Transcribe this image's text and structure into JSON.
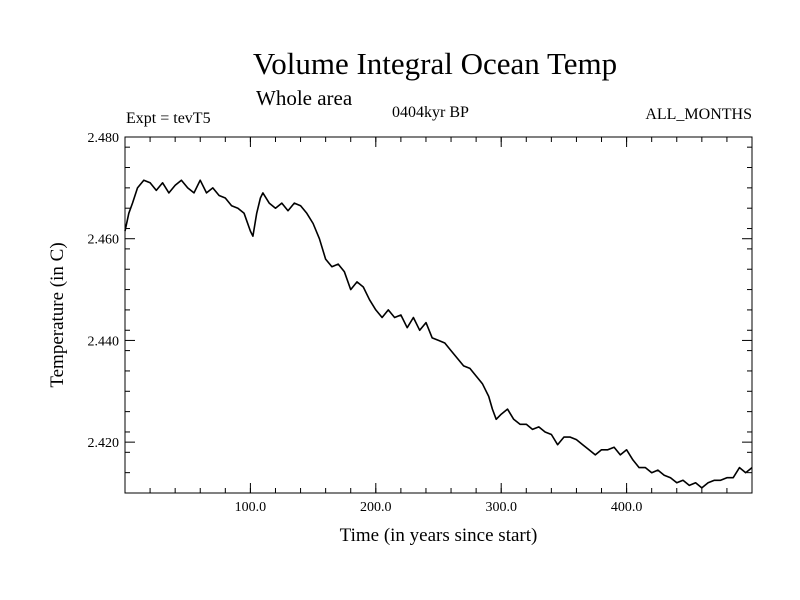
{
  "chart_data": {
    "type": "line",
    "title": "Volume Integral Ocean Temp",
    "subtitle": "Whole area",
    "left_annotation": "Expt = tevT5",
    "center_annotation": "0404kyr BP",
    "right_annotation": "ALL_MONTHS",
    "xlabel": "Time (in years since start)",
    "ylabel": "Temperature (in C)",
    "xlim": [
      0,
      500
    ],
    "ylim": [
      2.41,
      2.48
    ],
    "x_ticks": [
      100,
      200,
      300,
      400
    ],
    "x_tick_labels": [
      "100.0",
      "200.0",
      "300.0",
      "400.0"
    ],
    "y_ticks": [
      2.42,
      2.44,
      2.46,
      2.48
    ],
    "y_tick_labels": [
      "2.420",
      "2.440",
      "2.460",
      "2.480"
    ],
    "grid": false,
    "series": [
      {
        "color": "#000000",
        "x": [
          0,
          3,
          6,
          10,
          15,
          20,
          25,
          30,
          35,
          40,
          45,
          50,
          55,
          60,
          65,
          70,
          75,
          80,
          85,
          90,
          95,
          100,
          102,
          105,
          108,
          110,
          115,
          120,
          125,
          130,
          135,
          140,
          145,
          150,
          155,
          160,
          165,
          170,
          175,
          180,
          185,
          190,
          195,
          200,
          205,
          210,
          215,
          220,
          225,
          230,
          235,
          240,
          245,
          250,
          255,
          260,
          265,
          270,
          275,
          280,
          285,
          290,
          293,
          296,
          300,
          305,
          310,
          315,
          320,
          325,
          330,
          335,
          340,
          345,
          350,
          355,
          360,
          365,
          370,
          375,
          380,
          385,
          390,
          395,
          400,
          405,
          410,
          415,
          420,
          425,
          430,
          435,
          440,
          445,
          450,
          455,
          460,
          465,
          470,
          475,
          480,
          485,
          490,
          495,
          500
        ],
        "y": [
          2.4615,
          2.465,
          2.467,
          2.47,
          2.4715,
          2.471,
          2.4695,
          2.471,
          2.469,
          2.4705,
          2.4715,
          2.47,
          2.469,
          2.4715,
          2.469,
          2.47,
          2.4685,
          2.468,
          2.4665,
          2.466,
          2.465,
          2.4615,
          2.4605,
          2.465,
          2.468,
          2.469,
          2.467,
          2.466,
          2.467,
          2.4655,
          2.467,
          2.4665,
          2.465,
          2.463,
          2.46,
          2.456,
          2.4545,
          2.455,
          2.4535,
          2.45,
          2.4515,
          2.4505,
          2.448,
          2.446,
          2.4445,
          2.446,
          2.4445,
          2.445,
          2.4425,
          2.4445,
          2.442,
          2.4435,
          2.4405,
          2.44,
          2.4395,
          2.438,
          2.4365,
          2.435,
          2.4345,
          2.433,
          2.4315,
          2.429,
          2.4265,
          2.4245,
          2.4255,
          2.4265,
          2.4245,
          2.4235,
          2.4235,
          2.4225,
          2.423,
          2.422,
          2.4215,
          2.4195,
          2.421,
          2.421,
          2.4205,
          2.4195,
          2.4185,
          2.4175,
          2.4185,
          2.4185,
          2.419,
          2.4175,
          2.4185,
          2.4165,
          2.415,
          2.415,
          2.414,
          2.4145,
          2.4135,
          2.413,
          2.412,
          2.4125,
          2.4115,
          2.412,
          2.411,
          2.412,
          2.4125,
          2.4125,
          2.413,
          2.413,
          2.415,
          2.414,
          2.415
        ]
      }
    ]
  }
}
